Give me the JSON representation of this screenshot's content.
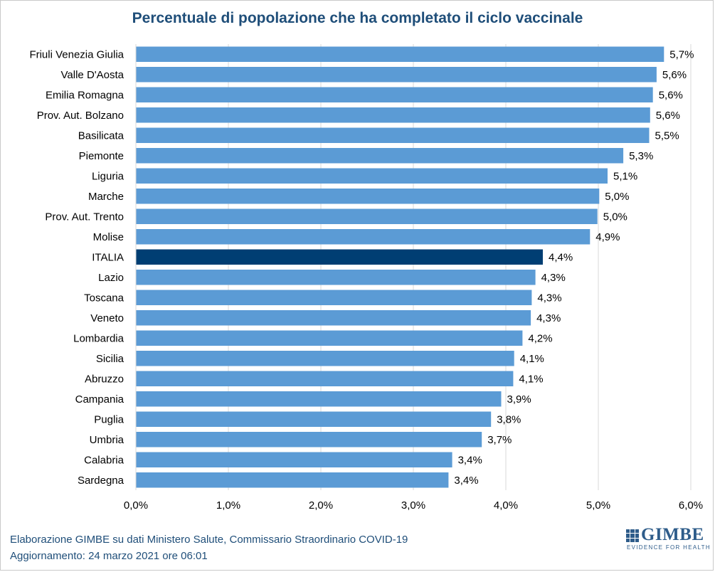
{
  "chart_data": {
    "type": "bar",
    "orientation": "horizontal",
    "title": "Percentuale di popolazione  che ha completato il ciclo vaccinale",
    "categories": [
      "Friuli Venezia Giulia",
      "Valle D'Aosta",
      "Emilia Romagna",
      "Prov. Aut. Bolzano",
      "Basilicata",
      "Piemonte",
      "Liguria",
      "Marche",
      "Prov. Aut. Trento",
      "Molise",
      "ITALIA",
      "Lazio",
      "Toscana",
      "Veneto",
      "Lombardia",
      "Sicilia",
      "Abruzzo",
      "Campania",
      "Puglia",
      "Umbria",
      "Calabria",
      "Sardegna"
    ],
    "values": [
      5.71,
      5.63,
      5.59,
      5.56,
      5.55,
      5.27,
      5.1,
      5.01,
      4.99,
      4.91,
      4.4,
      4.32,
      4.28,
      4.27,
      4.18,
      4.09,
      4.08,
      3.95,
      3.84,
      3.74,
      3.42,
      3.38
    ],
    "value_labels": [
      "5,7%",
      "5,6%",
      "5,6%",
      "5,6%",
      "5,5%",
      "5,3%",
      "5,1%",
      "5,0%",
      "5,0%",
      "4,9%",
      "4,4%",
      "4,3%",
      "4,3%",
      "4,3%",
      "4,2%",
      "4,1%",
      "4,1%",
      "3,9%",
      "3,8%",
      "3,7%",
      "3,4%",
      "3,4%"
    ],
    "highlight_category": "ITALIA",
    "x_ticks": [
      0,
      1,
      2,
      3,
      4,
      5,
      6
    ],
    "x_tick_labels": [
      "0,0%",
      "1,0%",
      "2,0%",
      "3,0%",
      "4,0%",
      "5,0%",
      "6,0%"
    ],
    "xlim": [
      0,
      6
    ],
    "grid": "vertical",
    "colors": {
      "bar": "#5b9bd5",
      "highlight": "#003e73",
      "grid": "#d9d9d9",
      "text": "#000000"
    }
  },
  "footer": {
    "line1": "Elaborazione GIMBE su dati Ministero  Salute, Commissario Straordinario  COVID-19",
    "line2": "Aggiornamento:  24 marzo 2021 ore 06:01"
  },
  "logo": {
    "word": "GIMBE",
    "tagline": "EVIDENCE FOR HEALTH"
  }
}
